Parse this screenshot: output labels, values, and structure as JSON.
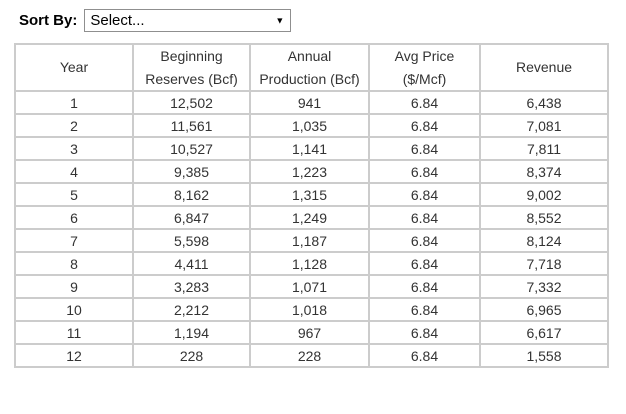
{
  "sort_control": {
    "label": "Sort By:",
    "selected_option": "Select...",
    "dropdown_icon": "▼"
  },
  "table": {
    "columns": [
      "Year",
      "Beginning Reserves (Bcf)",
      "Annual Production (Bcf)",
      "Avg Price ($/Mcf)",
      "Revenue"
    ],
    "rows": [
      [
        "1",
        "12,502",
        "941",
        "6.84",
        "6,438"
      ],
      [
        "2",
        "11,561",
        "1,035",
        "6.84",
        "7,081"
      ],
      [
        "3",
        "10,527",
        "1,141",
        "6.84",
        "7,811"
      ],
      [
        "4",
        "9,385",
        "1,223",
        "6.84",
        "8,374"
      ],
      [
        "5",
        "8,162",
        "1,315",
        "6.84",
        "9,002"
      ],
      [
        "6",
        "6,847",
        "1,249",
        "6.84",
        "8,552"
      ],
      [
        "7",
        "5,598",
        "1,187",
        "6.84",
        "8,124"
      ],
      [
        "8",
        "4,411",
        "1,128",
        "6.84",
        "7,718"
      ],
      [
        "9",
        "3,283",
        "1,071",
        "6.84",
        "7,332"
      ],
      [
        "10",
        "2,212",
        "1,018",
        "6.84",
        "6,965"
      ],
      [
        "11",
        "1,194",
        "967",
        "6.84",
        "6,617"
      ],
      [
        "12",
        "228",
        "228",
        "6.84",
        "1,558"
      ]
    ]
  }
}
